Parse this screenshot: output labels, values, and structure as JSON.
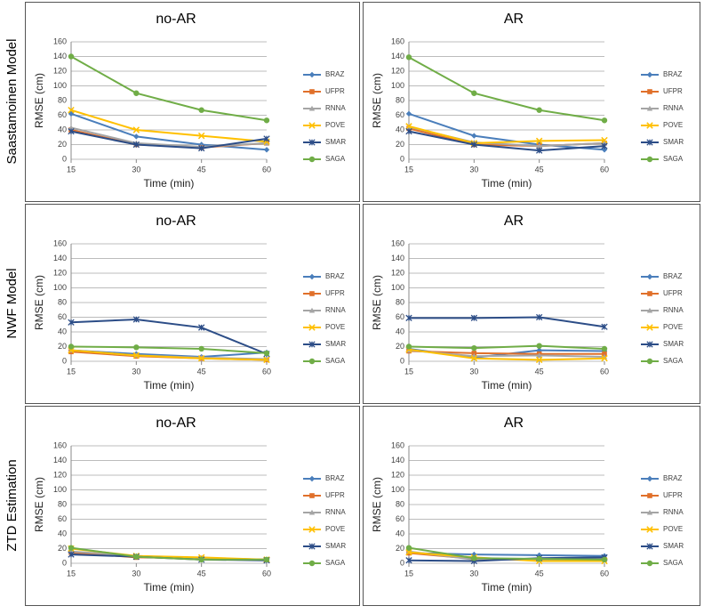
{
  "row_labels": [
    "Saastamoinen Model",
    "NWF Model",
    "ZTD Estimation"
  ],
  "chart_data": [
    {
      "type": "line",
      "title": "no-AR",
      "xlabel": "Time (min)",
      "ylabel": "RMSE (cm)",
      "x": [
        15,
        30,
        45,
        60
      ],
      "xlim": [
        15,
        60
      ],
      "xticks": [
        15,
        30,
        45,
        60
      ],
      "ylim": [
        0,
        160
      ],
      "yticks": [
        0,
        20,
        40,
        60,
        80,
        100,
        120,
        140,
        160
      ],
      "grid": true,
      "series": [
        {
          "name": "BRAZ",
          "color": "#4a7ebb",
          "marker": "diamond",
          "values": [
            62,
            31,
            20,
            13
          ]
        },
        {
          "name": "UFPR",
          "color": "#e0702a",
          "marker": "square",
          "values": [
            40,
            20,
            16,
            22
          ]
        },
        {
          "name": "RNNA",
          "color": "#a5a5a5",
          "marker": "triangle",
          "values": [
            43,
            22,
            17,
            22
          ]
        },
        {
          "name": "POVE",
          "color": "#ffc000",
          "marker": "x",
          "values": [
            67,
            40,
            32,
            24
          ]
        },
        {
          "name": "SMAR",
          "color": "#2c4d87",
          "marker": "star",
          "values": [
            38,
            20,
            15,
            28
          ]
        },
        {
          "name": "SAGA",
          "color": "#70ad47",
          "marker": "circle",
          "values": [
            140,
            90,
            67,
            53
          ]
        }
      ]
    },
    {
      "type": "line",
      "title": "AR",
      "xlabel": "Time (min)",
      "ylabel": "RMSE (cm)",
      "x": [
        15,
        30,
        45,
        60
      ],
      "xlim": [
        15,
        60
      ],
      "xticks": [
        15,
        30,
        45,
        60
      ],
      "ylim": [
        0,
        160
      ],
      "yticks": [
        0,
        20,
        40,
        60,
        80,
        100,
        120,
        140,
        160
      ],
      "grid": true,
      "series": [
        {
          "name": "BRAZ",
          "color": "#4a7ebb",
          "marker": "diamond",
          "values": [
            62,
            32,
            20,
            13
          ]
        },
        {
          "name": "UFPR",
          "color": "#e0702a",
          "marker": "square",
          "values": [
            42,
            20,
            18,
            22
          ]
        },
        {
          "name": "RNNA",
          "color": "#a5a5a5",
          "marker": "triangle",
          "values": [
            44,
            23,
            18,
            22
          ]
        },
        {
          "name": "POVE",
          "color": "#ffc000",
          "marker": "x",
          "values": [
            45,
            22,
            25,
            26
          ]
        },
        {
          "name": "SMAR",
          "color": "#2c4d87",
          "marker": "star",
          "values": [
            38,
            20,
            12,
            18
          ]
        },
        {
          "name": "SAGA",
          "color": "#70ad47",
          "marker": "circle",
          "values": [
            139,
            90,
            67,
            53
          ]
        }
      ]
    },
    {
      "type": "line",
      "title": "no-AR",
      "xlabel": "Time (min)",
      "ylabel": "RMSE (cm)",
      "x": [
        15,
        30,
        45,
        60
      ],
      "xlim": [
        15,
        60
      ],
      "xticks": [
        15,
        30,
        45,
        60
      ],
      "ylim": [
        0,
        160
      ],
      "yticks": [
        0,
        20,
        40,
        60,
        80,
        100,
        120,
        140,
        160
      ],
      "grid": true,
      "series": [
        {
          "name": "BRAZ",
          "color": "#4a7ebb",
          "marker": "diamond",
          "values": [
            15,
            10,
            6,
            12
          ]
        },
        {
          "name": "UFPR",
          "color": "#e0702a",
          "marker": "square",
          "values": [
            13,
            7,
            4,
            2
          ]
        },
        {
          "name": "RNNA",
          "color": "#a5a5a5",
          "marker": "triangle",
          "values": [
            15,
            8,
            5,
            3
          ]
        },
        {
          "name": "POVE",
          "color": "#ffc000",
          "marker": "x",
          "values": [
            15,
            8,
            4,
            2
          ]
        },
        {
          "name": "SMAR",
          "color": "#2c4d87",
          "marker": "star",
          "values": [
            53,
            57,
            46,
            10
          ]
        },
        {
          "name": "SAGA",
          "color": "#70ad47",
          "marker": "circle",
          "values": [
            20,
            19,
            17,
            11
          ]
        }
      ]
    },
    {
      "type": "line",
      "title": "AR",
      "xlabel": "Time (min)",
      "ylabel": "RMSE (cm)",
      "x": [
        15,
        30,
        45,
        60
      ],
      "xlim": [
        15,
        60
      ],
      "xticks": [
        15,
        30,
        45,
        60
      ],
      "ylim": [
        0,
        160
      ],
      "yticks": [
        0,
        20,
        40,
        60,
        80,
        100,
        120,
        140,
        160
      ],
      "grid": true,
      "series": [
        {
          "name": "BRAZ",
          "color": "#4a7ebb",
          "marker": "diamond",
          "values": [
            17,
            5,
            15,
            14
          ]
        },
        {
          "name": "UFPR",
          "color": "#e0702a",
          "marker": "square",
          "values": [
            14,
            11,
            10,
            10
          ]
        },
        {
          "name": "RNNA",
          "color": "#a5a5a5",
          "marker": "triangle",
          "values": [
            15,
            7,
            8,
            6
          ]
        },
        {
          "name": "POVE",
          "color": "#ffc000",
          "marker": "x",
          "values": [
            16,
            4,
            2,
            4
          ]
        },
        {
          "name": "SMAR",
          "color": "#2c4d87",
          "marker": "star",
          "values": [
            59,
            59,
            60,
            47
          ]
        },
        {
          "name": "SAGA",
          "color": "#70ad47",
          "marker": "circle",
          "values": [
            20,
            18,
            21,
            17
          ]
        }
      ]
    },
    {
      "type": "line",
      "title": "no-AR",
      "xlabel": "Time (min)",
      "ylabel": "RMSE (cm)",
      "x": [
        15,
        30,
        45,
        60
      ],
      "xlim": [
        15,
        60
      ],
      "xticks": [
        15,
        30,
        45,
        60
      ],
      "ylim": [
        0,
        160
      ],
      "yticks": [
        0,
        20,
        40,
        60,
        80,
        100,
        120,
        140,
        160
      ],
      "grid": true,
      "series": [
        {
          "name": "BRAZ",
          "color": "#4a7ebb",
          "marker": "diamond",
          "values": [
            13,
            9,
            6,
            5
          ]
        },
        {
          "name": "UFPR",
          "color": "#e0702a",
          "marker": "square",
          "values": [
            15,
            8,
            7,
            5
          ]
        },
        {
          "name": "RNNA",
          "color": "#a5a5a5",
          "marker": "triangle",
          "values": [
            16,
            10,
            7,
            5
          ]
        },
        {
          "name": "POVE",
          "color": "#ffc000",
          "marker": "x",
          "values": [
            20,
            10,
            8,
            5
          ]
        },
        {
          "name": "SMAR",
          "color": "#2c4d87",
          "marker": "star",
          "values": [
            12,
            9,
            5,
            4
          ]
        },
        {
          "name": "SAGA",
          "color": "#70ad47",
          "marker": "circle",
          "values": [
            21,
            9,
            5,
            5
          ]
        }
      ]
    },
    {
      "type": "line",
      "title": "AR",
      "xlabel": "Time (min)",
      "ylabel": "RMSE (cm)",
      "x": [
        15,
        30,
        45,
        60
      ],
      "xlim": [
        15,
        60
      ],
      "xticks": [
        15,
        30,
        45,
        60
      ],
      "ylim": [
        0,
        160
      ],
      "yticks": [
        0,
        20,
        40,
        60,
        80,
        100,
        120,
        140,
        160
      ],
      "grid": true,
      "series": [
        {
          "name": "BRAZ",
          "color": "#4a7ebb",
          "marker": "diamond",
          "values": [
            14,
            12,
            11,
            10
          ]
        },
        {
          "name": "UFPR",
          "color": "#e0702a",
          "marker": "square",
          "values": [
            14,
            6,
            5,
            5
          ]
        },
        {
          "name": "RNNA",
          "color": "#a5a5a5",
          "marker": "triangle",
          "values": [
            16,
            5,
            5,
            6
          ]
        },
        {
          "name": "POVE",
          "color": "#ffc000",
          "marker": "x",
          "values": [
            15,
            8,
            3,
            3
          ]
        },
        {
          "name": "SMAR",
          "color": "#2c4d87",
          "marker": "star",
          "values": [
            4,
            3,
            7,
            8
          ]
        },
        {
          "name": "SAGA",
          "color": "#70ad47",
          "marker": "circle",
          "values": [
            21,
            7,
            6,
            5
          ]
        }
      ]
    }
  ]
}
